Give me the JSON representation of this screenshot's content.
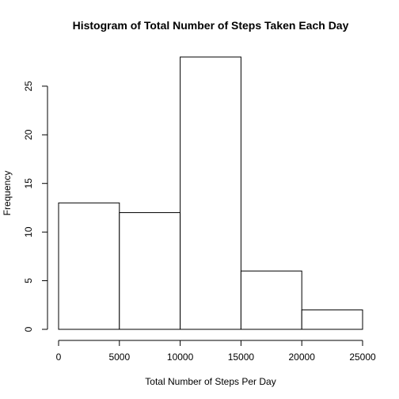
{
  "chart_data": {
    "type": "bar",
    "title": "Histogram of Total Number of Steps Taken Each Day",
    "xlabel": "Total Number of Steps Per Day",
    "ylabel": "Frequency",
    "bins": [
      {
        "from": 0,
        "to": 5000,
        "count": 13
      },
      {
        "from": 5000,
        "to": 10000,
        "count": 12
      },
      {
        "from": 10000,
        "to": 15000,
        "count": 28
      },
      {
        "from": 15000,
        "to": 20000,
        "count": 6
      },
      {
        "from": 20000,
        "to": 25000,
        "count": 2
      }
    ],
    "xlim": [
      0,
      25000
    ],
    "ylim": [
      0,
      28
    ],
    "x_ticks": [
      0,
      5000,
      10000,
      15000,
      20000,
      25000
    ],
    "y_ticks": [
      0,
      5,
      10,
      15,
      20,
      25
    ],
    "grid": false,
    "bar_fill": "#ffffff",
    "bar_stroke": "#000000"
  }
}
